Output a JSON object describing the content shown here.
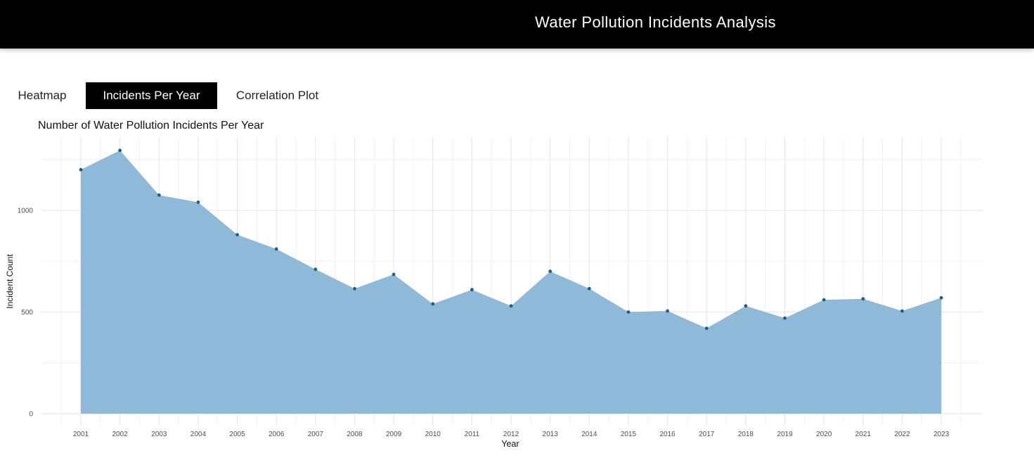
{
  "header": {
    "title": "Water Pollution Incidents Analysis"
  },
  "tabs": [
    {
      "label": "Heatmap",
      "active": false
    },
    {
      "label": "Incidents Per Year",
      "active": true
    },
    {
      "label": "Correlation Plot",
      "active": false
    }
  ],
  "colors": {
    "header_bg": "#000000",
    "area_fill": "#8fb9d8",
    "point_color": "#1a5f8a",
    "active_tab_bg": "#000000"
  },
  "chart_data": {
    "type": "area",
    "title": "Number of Water Pollution Incidents Per Year",
    "xlabel": "Year",
    "ylabel": "Incident Count",
    "x": [
      "2001",
      "2002",
      "2003",
      "2004",
      "2005",
      "2006",
      "2007",
      "2008",
      "2009",
      "2010",
      "2011",
      "2012",
      "2013",
      "2014",
      "2015",
      "2016",
      "2017",
      "2018",
      "2019",
      "2020",
      "2021",
      "2022",
      "2023"
    ],
    "values": [
      1200,
      1295,
      1075,
      1040,
      880,
      810,
      710,
      615,
      685,
      540,
      610,
      530,
      700,
      615,
      500,
      505,
      420,
      530,
      470,
      560,
      565,
      505,
      570
    ],
    "yticks": [
      0,
      500,
      1000
    ],
    "ylim": [
      0,
      1350
    ],
    "grid": true,
    "show_points": true
  }
}
